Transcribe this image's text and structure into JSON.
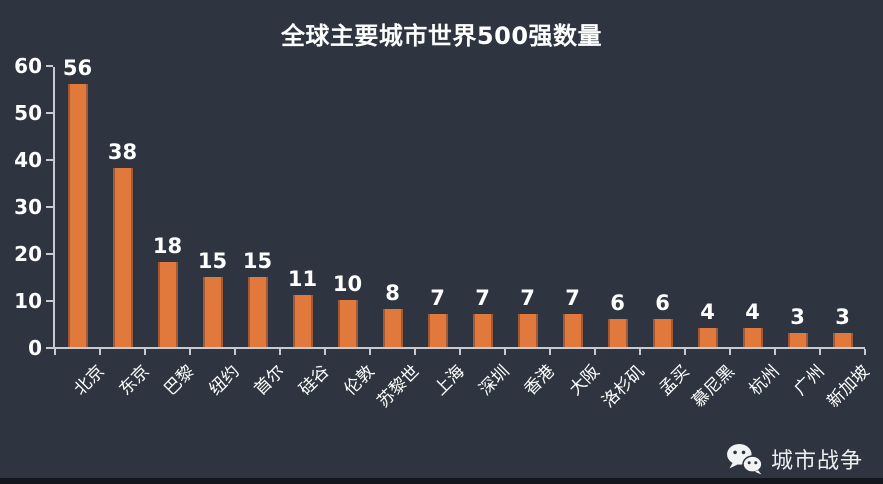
{
  "title": "全球主要城市世界500强数量",
  "watermark": {
    "icon": "wechat-icon",
    "label": "城市战争"
  },
  "colors": {
    "background": "#2E3440",
    "bar": "#E1793C",
    "axis": "#C7CBD1",
    "text": "#FFFFFF",
    "bottom_strip": "#14171D"
  },
  "chart_data": {
    "type": "bar",
    "title": "全球主要城市世界500强数量",
    "categories": [
      "北京",
      "东京",
      "巴黎",
      "纽约",
      "首尔",
      "硅谷",
      "伦敦",
      "苏黎世",
      "上海",
      "深圳",
      "香港",
      "大阪",
      "洛杉矶",
      "孟买",
      "慕尼黑",
      "杭州",
      "广州",
      "新加坡"
    ],
    "values": [
      56,
      38,
      18,
      15,
      15,
      11,
      10,
      8,
      7,
      7,
      7,
      7,
      6,
      6,
      4,
      4,
      3,
      3
    ],
    "xlabel": "",
    "ylabel": "",
    "ylim": [
      0,
      60
    ],
    "yticks": [
      0,
      10,
      20,
      30,
      40,
      50,
      60
    ],
    "grid": false,
    "legend": false,
    "value_labels": true,
    "x_label_rotation_deg": -45
  }
}
